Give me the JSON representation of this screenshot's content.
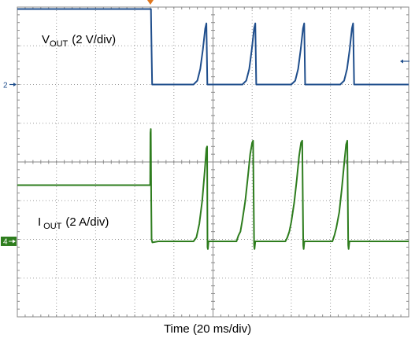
{
  "chart_data": {
    "type": "line",
    "xlabel": "Time (20 ms/div)",
    "grid": true,
    "divisions": {
      "horizontal": 10,
      "vertical": 8
    },
    "x_units": "ms",
    "x_range": [
      0,
      200
    ],
    "y_range_div": [
      -4,
      4
    ],
    "trigger_marker": {
      "x": 68,
      "color": "#e07820"
    },
    "right_marker": {
      "y_div": 2.6,
      "color": "#1f4e8c"
    },
    "series": [
      {
        "name": "VOUT",
        "label": "V",
        "label_sub": "OUT",
        "label_scale": "(2 V/div)",
        "scale": "2 V/div",
        "color": "#1f4e8c",
        "ref_marker": "2",
        "ref_div": 2,
        "points": [
          [
            0,
            3.95
          ],
          [
            68.3,
            3.95
          ],
          [
            68.4,
            3.5
          ],
          [
            68.9,
            2.0
          ],
          [
            70,
            2.0
          ],
          [
            90,
            2.0
          ],
          [
            92,
            2.1
          ],
          [
            93.5,
            2.4
          ],
          [
            94.8,
            2.9
          ],
          [
            96,
            3.45
          ],
          [
            96.6,
            3.58
          ],
          [
            97.1,
            2.0
          ],
          [
            115,
            2.0
          ],
          [
            117,
            2.1
          ],
          [
            118.5,
            2.4
          ],
          [
            119.8,
            2.9
          ],
          [
            121,
            3.45
          ],
          [
            121.6,
            3.58
          ],
          [
            122.1,
            2.0
          ],
          [
            140,
            2.0
          ],
          [
            142,
            2.1
          ],
          [
            143.5,
            2.4
          ],
          [
            144.8,
            2.9
          ],
          [
            146,
            3.45
          ],
          [
            146.6,
            3.58
          ],
          [
            147.1,
            2.0
          ],
          [
            165,
            2.0
          ],
          [
            167,
            2.1
          ],
          [
            168.5,
            2.4
          ],
          [
            169.8,
            2.9
          ],
          [
            171,
            3.45
          ],
          [
            171.6,
            3.58
          ],
          [
            172.1,
            2.0
          ],
          [
            200,
            2.0
          ]
        ]
      },
      {
        "name": "IOUT",
        "label": "I",
        "label_sub": "OUT",
        "label_scale": "(2 A/div)",
        "scale": "2 A/div",
        "color": "#2e7d1e",
        "ref_marker": "4",
        "ref_div": -2.05,
        "points": [
          [
            0,
            -0.6
          ],
          [
            67.9,
            -0.6
          ],
          [
            68.0,
            0.75
          ],
          [
            68.2,
            0.85
          ],
          [
            68.4,
            -0.9
          ],
          [
            68.6,
            -2.0
          ],
          [
            69.0,
            -2.08
          ],
          [
            72,
            -2.05
          ],
          [
            90,
            -2.05
          ],
          [
            91.5,
            -1.95
          ],
          [
            93,
            -1.6
          ],
          [
            94.5,
            -1.0
          ],
          [
            95.8,
            -0.2
          ],
          [
            96.6,
            0.35
          ],
          [
            97.0,
            0.4
          ],
          [
            97.2,
            -2.2
          ],
          [
            97.4,
            -2.25
          ],
          [
            97.7,
            -2.05
          ],
          [
            112,
            -2.05
          ],
          [
            113,
            -1.9
          ],
          [
            114,
            -1.8
          ],
          [
            115,
            -1.5
          ],
          [
            116.5,
            -1.0
          ],
          [
            117.8,
            -0.4
          ],
          [
            119.0,
            0.2
          ],
          [
            120.0,
            0.5
          ],
          [
            120.5,
            0.55
          ],
          [
            121.0,
            -2.15
          ],
          [
            121.2,
            -2.25
          ],
          [
            121.6,
            -2.05
          ],
          [
            137,
            -2.05
          ],
          [
            138,
            -1.95
          ],
          [
            139,
            -1.8
          ],
          [
            140,
            -1.55
          ],
          [
            141.5,
            -1.05
          ],
          [
            142.8,
            -0.45
          ],
          [
            144.0,
            0.15
          ],
          [
            145.0,
            0.5
          ],
          [
            145.6,
            0.55
          ],
          [
            146.1,
            -2.15
          ],
          [
            146.3,
            -2.25
          ],
          [
            146.7,
            -2.05
          ],
          [
            161,
            -2.05
          ],
          [
            162,
            -1.9
          ],
          [
            163,
            -1.7
          ],
          [
            164.5,
            -1.3
          ],
          [
            165.8,
            -0.7
          ],
          [
            167.0,
            -0.05
          ],
          [
            168.0,
            0.45
          ],
          [
            168.6,
            0.55
          ],
          [
            169.1,
            -2.15
          ],
          [
            169.3,
            -2.25
          ],
          [
            169.7,
            -2.05
          ],
          [
            200,
            -2.05
          ]
        ]
      }
    ]
  }
}
